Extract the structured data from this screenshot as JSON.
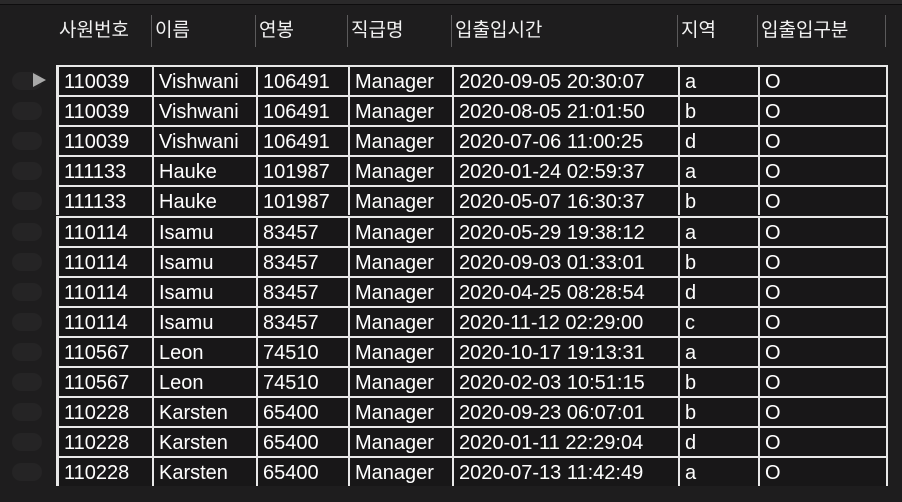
{
  "columns": [
    "사원번호",
    "이름",
    "연봉",
    "직급명",
    "입출입시간",
    "지역",
    "입출입구분"
  ],
  "rows": [
    [
      "110039",
      "Vishwani",
      "106491",
      "Manager",
      "2020-09-05 20:30:07",
      "a",
      "O"
    ],
    [
      "110039",
      "Vishwani",
      "106491",
      "Manager",
      "2020-08-05 21:01:50",
      "b",
      "O"
    ],
    [
      "110039",
      "Vishwani",
      "106491",
      "Manager",
      "2020-07-06 11:00:25",
      "d",
      "O"
    ],
    [
      "111133",
      "Hauke",
      "101987",
      "Manager",
      "2020-01-24 02:59:37",
      "a",
      "O"
    ],
    [
      "111133",
      "Hauke",
      "101987",
      "Manager",
      "2020-05-07 16:30:37",
      "b",
      "O"
    ],
    [
      "110114",
      "Isamu",
      "83457",
      "Manager",
      "2020-05-29 19:38:12",
      "a",
      "O"
    ],
    [
      "110114",
      "Isamu",
      "83457",
      "Manager",
      "2020-09-03 01:33:01",
      "b",
      "O"
    ],
    [
      "110114",
      "Isamu",
      "83457",
      "Manager",
      "2020-04-25 08:28:54",
      "d",
      "O"
    ],
    [
      "110114",
      "Isamu",
      "83457",
      "Manager",
      "2020-11-12 02:29:00",
      "c",
      "O"
    ],
    [
      "110567",
      "Leon",
      "74510",
      "Manager",
      "2020-10-17 19:13:31",
      "a",
      "O"
    ],
    [
      "110567",
      "Leon",
      "74510",
      "Manager",
      "2020-02-03 10:51:15",
      "b",
      "O"
    ],
    [
      "110228",
      "Karsten",
      "65400",
      "Manager",
      "2020-09-23 06:07:01",
      "b",
      "O"
    ],
    [
      "110228",
      "Karsten",
      "65400",
      "Manager",
      "2020-01-11 22:29:04",
      "d",
      "O"
    ],
    [
      "110228",
      "Karsten",
      "65400",
      "Manager",
      "2020-07-13 11:42:49",
      "a",
      "O"
    ]
  ],
  "selected_row": 0,
  "icons": {
    "row_indicator": "current-row-triangle-icon"
  },
  "colors": {
    "background": "#1e1d1e",
    "cell_background": "#181718",
    "grid_line": "#e8e8e8",
    "header_text": "#f2f2f2"
  }
}
